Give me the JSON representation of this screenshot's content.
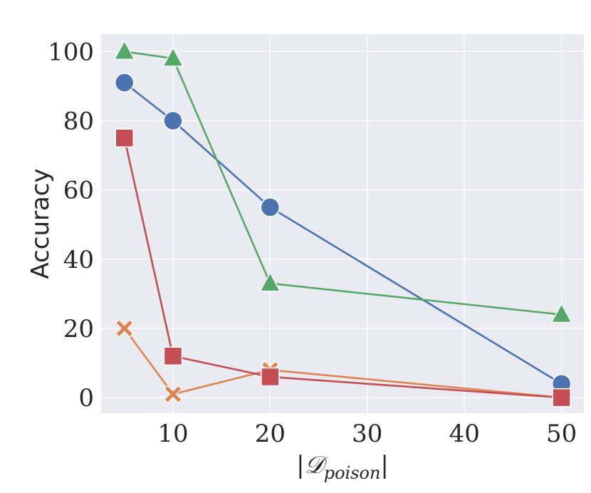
{
  "chart_data": {
    "type": "line",
    "title": "",
    "xlabel": "|𝒟",
    "xlabel_sub": "poison",
    "xlabel_close": "|",
    "ylabel": "Accuracy",
    "xlim": [
      2.6,
      52.3
    ],
    "ylim": [
      -4.5,
      105
    ],
    "xticks": [
      10,
      20,
      30,
      40,
      50
    ],
    "yticks": [
      0,
      20,
      40,
      60,
      80,
      100
    ],
    "x": [
      5,
      10,
      20,
      50
    ],
    "grid": true,
    "legend": "none",
    "background": "#eaeaf2",
    "series": [
      {
        "values": [
          91,
          80,
          55,
          4
        ],
        "marker": "circle",
        "color": "#4c72b0"
      },
      {
        "values": [
          20,
          1,
          8,
          0
        ],
        "marker": "x",
        "color": "#dd8452"
      },
      {
        "values": [
          100,
          98,
          33,
          24
        ],
        "marker": "triangle",
        "color": "#55a868"
      },
      {
        "values": [
          75,
          12,
          6,
          0
        ],
        "marker": "square",
        "color": "#c44e52"
      }
    ]
  }
}
